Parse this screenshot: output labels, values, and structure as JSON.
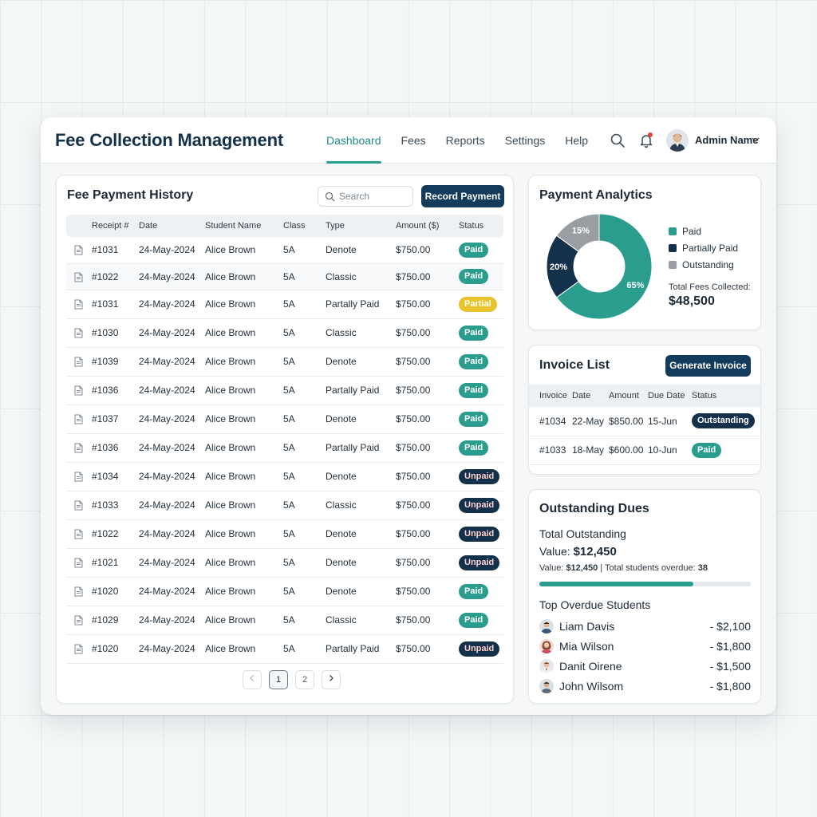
{
  "app": {
    "title": "Fee Collection Management"
  },
  "nav": {
    "items": [
      {
        "label": "Dashboard",
        "active": true
      },
      {
        "label": "Fees",
        "active": false
      },
      {
        "label": "Reports",
        "active": false
      },
      {
        "label": "Settings",
        "active": false
      },
      {
        "label": "Help",
        "active": false
      }
    ]
  },
  "user": {
    "name": "Admin Name",
    "icons": [
      "search-icon",
      "bell-icon",
      "avatar",
      "chevron-down-icon"
    ]
  },
  "fee_history": {
    "title": "Fee Payment History",
    "search_placeholder": "Search",
    "record_button": "Record Payment",
    "columns": [
      "Receipt #",
      "Date",
      "Student Name",
      "Class",
      "Type",
      "Amount ($)",
      "Status"
    ],
    "rows": [
      {
        "receipt": "#1031",
        "date": "24-May-2024",
        "student": "Alice Brown",
        "class": "5A",
        "type": "Denote",
        "amount": "$750.00",
        "status": "Paid"
      },
      {
        "receipt": "#1022",
        "date": "24-May-2024",
        "student": "Alice Brown",
        "class": "5A",
        "type": "Classic",
        "amount": "$750.00",
        "status": "Paid"
      },
      {
        "receipt": "#1031",
        "date": "24-May-2024",
        "student": "Alice Brown",
        "class": "5A",
        "type": "Partally Paid",
        "amount": "$750.00",
        "status": "Partial"
      },
      {
        "receipt": "#1030",
        "date": "24-May-2024",
        "student": "Alice Brown",
        "class": "5A",
        "type": "Classic",
        "amount": "$750.00",
        "status": "Paid"
      },
      {
        "receipt": "#1039",
        "date": "24-May-2024",
        "student": "Alice Brown",
        "class": "5A",
        "type": "Denote",
        "amount": "$750.00",
        "status": "Paid"
      },
      {
        "receipt": "#1036",
        "date": "24-May-2024",
        "student": "Alice Brown",
        "class": "5A",
        "type": "Partally Paid",
        "amount": "$750.00",
        "status": "Paid"
      },
      {
        "receipt": "#1037",
        "date": "24-May-2024",
        "student": "Alice Brown",
        "class": "5A",
        "type": "Denote",
        "amount": "$750.00",
        "status": "Paid"
      },
      {
        "receipt": "#1036",
        "date": "24-May-2024",
        "student": "Alice Brown",
        "class": "5A",
        "type": "Partally Paid",
        "amount": "$750.00",
        "status": "Paid"
      },
      {
        "receipt": "#1034",
        "date": "24-May-2024",
        "student": "Alice Brown",
        "class": "5A",
        "type": "Denote",
        "amount": "$750.00",
        "status": "Unpaid"
      },
      {
        "receipt": "#1033",
        "date": "24-May-2024",
        "student": "Alice Brown",
        "class": "5A",
        "type": "Classic",
        "amount": "$750.00",
        "status": "Unpaid"
      },
      {
        "receipt": "#1022",
        "date": "24-May-2024",
        "student": "Alice Brown",
        "class": "5A",
        "type": "Denote",
        "amount": "$750.00",
        "status": "Unpaid"
      },
      {
        "receipt": "#1021",
        "date": "24-May-2024",
        "student": "Alice Brown",
        "class": "5A",
        "type": "Denote",
        "amount": "$750.00",
        "status": "Unpaid"
      },
      {
        "receipt": "#1020",
        "date": "24-May-2024",
        "student": "Alice Brown",
        "class": "5A",
        "type": "Denote",
        "amount": "$750.00",
        "status": "Paid"
      },
      {
        "receipt": "#1029",
        "date": "24-May-2024",
        "student": "Alice Brown",
        "class": "5A",
        "type": "Classic",
        "amount": "$750.00",
        "status": "Paid"
      },
      {
        "receipt": "#1020",
        "date": "24-May-2024",
        "student": "Alice Brown",
        "class": "5A",
        "type": "Partally Paid",
        "amount": "$750.00",
        "status": "Unpaid"
      }
    ],
    "pagination": {
      "pages": [
        "1",
        "2"
      ],
      "current": "1"
    }
  },
  "analytics": {
    "title": "Payment Analytics",
    "total_label": "Total Fees Collected:",
    "total_value": "$48,500"
  },
  "chart_data": {
    "type": "pie",
    "categories": [
      "Paid",
      "Partially Paid",
      "Outstanding"
    ],
    "values": [
      65,
      20,
      15
    ],
    "labels": [
      "65%",
      "20%",
      "15%"
    ],
    "colors": [
      "#2a9d8f",
      "#13314a",
      "#9a9ea2"
    ],
    "donut": true,
    "legend": "right"
  },
  "invoices": {
    "title": "Invoice List",
    "generate_button": "Generate Invoice",
    "columns": [
      "Invoice",
      "Date",
      "Amount",
      "Due Date",
      "Status"
    ],
    "rows": [
      {
        "invoice": "#1034",
        "date": "22-May",
        "amount": "$850.00",
        "due": "15-Jun",
        "status": "Outstanding"
      },
      {
        "invoice": "#1033",
        "date": "18-May",
        "amount": "$600.00",
        "due": "10-Jun",
        "status": "Paid"
      }
    ]
  },
  "dues": {
    "title": "Outstanding Dues",
    "total_label": "Total Outstanding",
    "value_label": "Value:",
    "value": "$12,450",
    "detail_value_label": "Value:",
    "detail_value": "$12,450",
    "detail_sep": "| Total students overdue:",
    "detail_count": "38",
    "progress_fraction": 0.73,
    "overdue_title": "Top Overdue Students",
    "students": [
      {
        "name": "Liam Davis",
        "amount": "- $2,100"
      },
      {
        "name": "Mia Wilson",
        "amount": "- $1,800"
      },
      {
        "name": "Danit Oirene",
        "amount": "- $1,500"
      },
      {
        "name": "John Wilsom",
        "amount": "- $1,800"
      }
    ]
  }
}
